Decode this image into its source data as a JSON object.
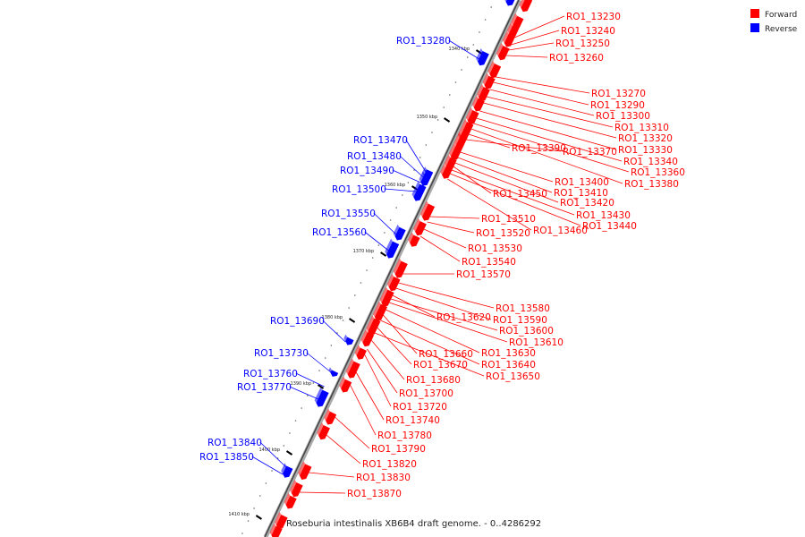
{
  "title": "Roseburia intestinalis XB6B4 draft genome. - 0..4286292",
  "legend": [
    {
      "label": "Forward",
      "color": "#ff0000"
    },
    {
      "label": "Reverse",
      "color": "#0000ff"
    }
  ],
  "scale_ticks": [
    "1340 kbp",
    "1350 kbp",
    "1360 kbp",
    "1370 kbp",
    "1380 kbp",
    "1390 kbp",
    "1400 kbp",
    "1410 kbp"
  ],
  "forward_genes": [
    "RO1_13230",
    "RO1_13240",
    "RO1_13250",
    "RO1_13260",
    "RO1_13270",
    "RO1_13290",
    "RO1_13300",
    "RO1_13310",
    "RO1_13320",
    "RO1_13330",
    "RO1_13340",
    "RO1_13360",
    "RO1_13380",
    "RO1_13390",
    "RO1_13370",
    "RO1_13400",
    "RO1_13410",
    "RO1_13420",
    "RO1_13450",
    "RO1_13430",
    "RO1_13440",
    "RO1_13460",
    "RO1_13510",
    "RO1_13520",
    "RO1_13530",
    "RO1_13540",
    "RO1_13570",
    "RO1_13580",
    "RO1_13590",
    "RO1_13620",
    "RO1_13600",
    "RO1_13610",
    "RO1_13630",
    "RO1_13660",
    "RO1_13640",
    "RO1_13670",
    "RO1_13650",
    "RO1_13680",
    "RO1_13700",
    "RO1_13720",
    "RO1_13740",
    "RO1_13780",
    "RO1_13790",
    "RO1_13820",
    "RO1_13830",
    "RO1_13870"
  ],
  "reverse_genes": [
    "RO1_13280",
    "RO1_13470",
    "RO1_13480",
    "RO1_13490",
    "RO1_13500",
    "RO1_13550",
    "RO1_13560",
    "RO1_13690",
    "RO1_13730",
    "RO1_13760",
    "RO1_13770",
    "RO1_13840",
    "RO1_13850"
  ]
}
